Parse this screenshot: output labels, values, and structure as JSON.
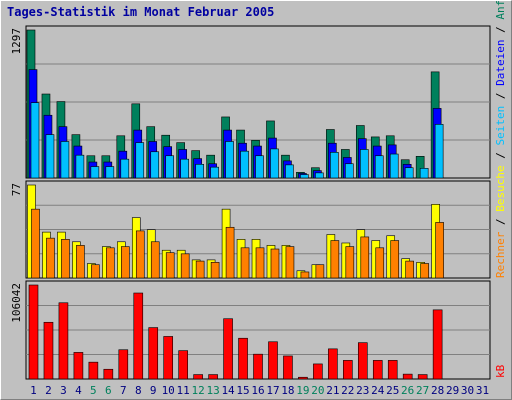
{
  "title": "Tages-Statistik im Monat Februar 2005",
  "legend": {
    "anfragen": "Anfragen",
    "dateien": "Dateien",
    "seiten": "Seiten",
    "besuche": "Besuche",
    "rechner": "Rechner",
    "kb": "kB",
    "separator": "/"
  },
  "colors": {
    "anfragen": "#00805c",
    "dateien": "#0000ff",
    "seiten": "#00c0ff",
    "besuche": "#ffff00",
    "rechner": "#ff8000",
    "kb": "#ff0000",
    "weekend_label": "#00805c",
    "day_label": "#000080"
  },
  "chart_data": [
    {
      "type": "bar",
      "panel": "hits",
      "ymax_label": "1297",
      "ylim": [
        0,
        1297
      ],
      "categories": [
        "1",
        "2",
        "3",
        "4",
        "5",
        "6",
        "7",
        "8",
        "9",
        "10",
        "11",
        "12",
        "13",
        "14",
        "15",
        "16",
        "17",
        "18",
        "19",
        "20",
        "21",
        "22",
        "23",
        "24",
        "25",
        "26",
        "27",
        "28",
        "29",
        "30",
        "31"
      ],
      "weekend_days": [
        "5",
        "6",
        "12",
        "13",
        "19",
        "20",
        "26",
        "27"
      ],
      "series": [
        {
          "name": "Anfragen",
          "values": [
            1297,
            736,
            670,
            380,
            195,
            195,
            370,
            650,
            450,
            375,
            310,
            240,
            200,
            535,
            420,
            330,
            500,
            200,
            50,
            90,
            425,
            250,
            460,
            360,
            370,
            160,
            190,
            930,
            0,
            0,
            0
          ]
        },
        {
          "name": "Dateien",
          "values": [
            950,
            550,
            450,
            280,
            140,
            140,
            235,
            420,
            320,
            275,
            250,
            170,
            125,
            420,
            305,
            280,
            350,
            150,
            40,
            65,
            305,
            180,
            345,
            280,
            290,
            120,
            0,
            610,
            0,
            0,
            0
          ]
        },
        {
          "name": "Seiten",
          "values": [
            660,
            380,
            320,
            200,
            100,
            100,
            165,
            310,
            230,
            195,
            165,
            120,
            95,
            320,
            235,
            195,
            255,
            115,
            30,
            45,
            225,
            125,
            250,
            195,
            210,
            90,
            85,
            470,
            0,
            0,
            0
          ]
        }
      ]
    },
    {
      "type": "bar",
      "panel": "visits",
      "ymax_label": "77",
      "ylim": [
        0,
        77
      ],
      "series": [
        {
          "name": "Besuche",
          "values": [
            77,
            38,
            38,
            30,
            12,
            26,
            30,
            50,
            40,
            23,
            23,
            15,
            15,
            57,
            32,
            32,
            27,
            27,
            6,
            11,
            36,
            29,
            40,
            31,
            35,
            16,
            13,
            61,
            0,
            0,
            0
          ]
        },
        {
          "name": "Rechner",
          "values": [
            57,
            33,
            32,
            27,
            11,
            25,
            26,
            39,
            30,
            21,
            20,
            14,
            13,
            42,
            25,
            25,
            24,
            26,
            5,
            11,
            31,
            26,
            34,
            25,
            31,
            14,
            12,
            46,
            0,
            0,
            0
          ]
        }
      ]
    },
    {
      "type": "bar",
      "panel": "kbytes",
      "ymax_label": "106042",
      "ylim": [
        0,
        106042
      ],
      "series": [
        {
          "name": "kB",
          "values": [
            106042,
            64000,
            86000,
            30000,
            19000,
            11000,
            33000,
            97000,
            58000,
            48000,
            32000,
            5000,
            5000,
            68000,
            46000,
            28000,
            42000,
            26000,
            2000,
            17000,
            34000,
            21000,
            41000,
            21000,
            21000,
            5500,
            5000,
            78000,
            0,
            0,
            0
          ]
        }
      ]
    }
  ]
}
